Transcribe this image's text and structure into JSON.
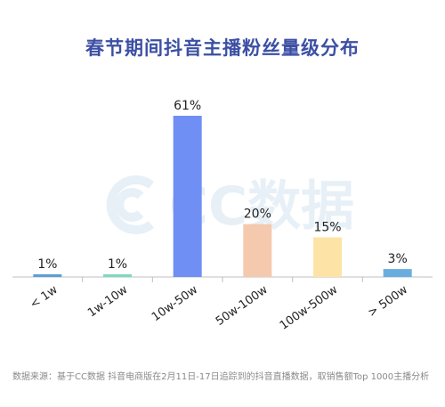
{
  "title": "春节期间抖音主播粉丝量级分布",
  "watermark_text": "CC数据",
  "footer": "数据来源：基于CC数据 抖音电商版在2月11日-17日追踪到的抖音直播数据，取销售额Top 1000主播分析",
  "chart_data": {
    "type": "bar",
    "categories": [
      "< 1w",
      "1w-10w",
      "10w-50w",
      "50w-100w",
      "100w-500w",
      "> 500w"
    ],
    "values": [
      1,
      1,
      61,
      20,
      15,
      3
    ],
    "value_labels": [
      "1%",
      "1%",
      "61%",
      "20%",
      "15%",
      "3%"
    ],
    "colors": [
      "#5aa0d6",
      "#7fd7c0",
      "#6f8ff5",
      "#f5c9ad",
      "#fde4a6",
      "#6aaee0"
    ],
    "ylim": [
      0,
      61
    ],
    "grid": false,
    "legend": "none"
  }
}
